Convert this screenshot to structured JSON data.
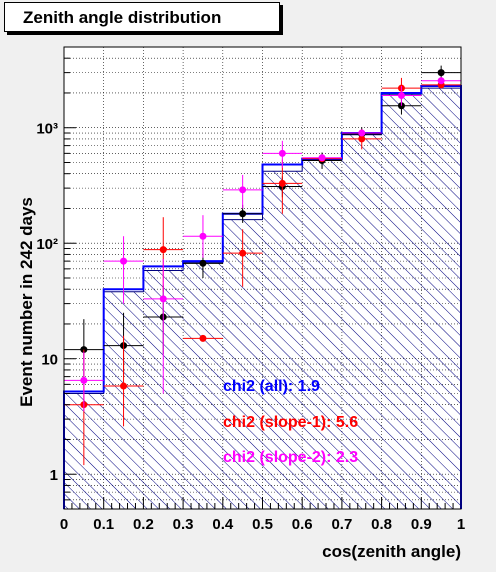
{
  "chart_data": {
    "type": "histogram",
    "title": "Zenith angle distribution",
    "xlabel": "cos(zenith angle)",
    "ylabel": "Event number in 242 days",
    "xlim": [
      0,
      1
    ],
    "ylim": [
      0.5,
      5000
    ],
    "yscale": "log",
    "grid": true,
    "x_ticks": [
      "0",
      "0.1",
      "0.2",
      "0.3",
      "0.4",
      "0.5",
      "0.6",
      "0.7",
      "0.8",
      "0.9",
      "1"
    ],
    "y_ticks": [
      "1",
      "10",
      "10²",
      "10³"
    ],
    "bin_edges": [
      0,
      0.1,
      0.2,
      0.3,
      0.4,
      0.5,
      0.6,
      0.7,
      0.8,
      0.9,
      1.0
    ],
    "histograms": [
      {
        "style": "hatched",
        "color": "#000080",
        "values": [
          5,
          38,
          58,
          68,
          160,
          420,
          530,
          870,
          1950,
          2200
        ]
      },
      {
        "style": "line",
        "color": "#0000ff",
        "values": [
          5.2,
          40,
          63,
          70,
          180,
          480,
          540,
          900,
          2000,
          2300
        ]
      }
    ],
    "series": [
      {
        "color": "#000000",
        "x": [
          0.05,
          0.15,
          0.25,
          0.35,
          0.45,
          0.55,
          0.65,
          0.75,
          0.85,
          0.95
        ],
        "y": [
          12,
          13,
          23,
          67,
          180,
          310,
          520,
          880,
          1550,
          3000
        ],
        "yerr_low": [
          6,
          6,
          12,
          17,
          30,
          60,
          80,
          120,
          250,
          400
        ],
        "yerr_high": [
          10,
          12,
          20,
          22,
          35,
          70,
          90,
          130,
          300,
          450
        ]
      },
      {
        "color": "#ff0000",
        "x": [
          0.05,
          0.15,
          0.25,
          0.35,
          0.45,
          0.55,
          0.65,
          0.75,
          0.85,
          0.95
        ],
        "y": [
          4,
          5.8,
          88,
          15,
          82,
          330,
          540,
          800,
          2200,
          2350
        ],
        "yerr_low": [
          2.8,
          3.2,
          50,
          0,
          40,
          150,
          0,
          150,
          450,
          0
        ],
        "yerr_high": [
          8,
          10,
          80,
          0,
          50,
          200,
          0,
          170,
          500,
          0
        ]
      },
      {
        "color": "#ff00ff",
        "x": [
          0.05,
          0.15,
          0.25,
          0.35,
          0.45,
          0.55,
          0.65,
          0.75,
          0.85,
          0.95
        ],
        "y": [
          6.5,
          70,
          33,
          115,
          290,
          600,
          550,
          900,
          1900,
          2550
        ],
        "yerr_low": [
          3,
          40,
          28,
          40,
          90,
          150,
          0,
          0,
          350,
          0
        ],
        "yerr_high": [
          5,
          45,
          40,
          60,
          100,
          170,
          0,
          0,
          400,
          0
        ]
      }
    ],
    "annotations": [
      {
        "text": "chi2 (all): 1.9",
        "color": "#0000ff"
      },
      {
        "text": "chi2 (slope-1): 5.6",
        "color": "#ff0000"
      },
      {
        "text": "chi2 (slope-2): 2.3",
        "color": "#ff00ff"
      }
    ]
  }
}
